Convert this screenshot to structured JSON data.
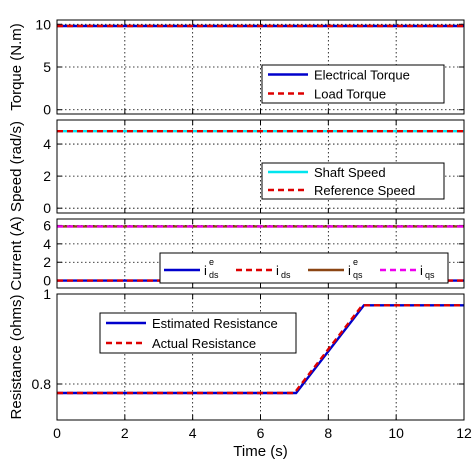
{
  "chart_data": [
    {
      "type": "line",
      "ylabel": "Torque (N.m)",
      "xlim": [
        0,
        12
      ],
      "ylim": [
        -0.5,
        10.5
      ],
      "yticks": [
        "0",
        "5",
        "10"
      ],
      "grid": true,
      "legend": "right",
      "series": [
        {
          "name": "Electrical Torque",
          "color": "#0000cc",
          "dash": false,
          "x": [
            0,
            12
          ],
          "y": [
            9.8,
            9.8
          ]
        },
        {
          "name": "Load Torque",
          "color": "#dd0000",
          "dash": true,
          "x": [
            0,
            12
          ],
          "y": [
            9.8,
            9.8
          ]
        }
      ]
    },
    {
      "type": "line",
      "ylabel": "Speed (rad/s)",
      "xlim": [
        0,
        12
      ],
      "ylim": [
        -0.3,
        5.5
      ],
      "yticks": [
        "0",
        "2",
        "4"
      ],
      "grid": true,
      "legend": "right",
      "series": [
        {
          "name": "Shaft Speed",
          "color": "#00e5ee",
          "dash": false,
          "x": [
            0,
            12
          ],
          "y": [
            4.8,
            4.8
          ]
        },
        {
          "name": "Reference Speed",
          "color": "#dd0000",
          "dash": true,
          "x": [
            0,
            12
          ],
          "y": [
            4.8,
            4.8
          ]
        }
      ]
    },
    {
      "type": "line",
      "ylabel": "Current (A)",
      "xlim": [
        0,
        12
      ],
      "ylim": [
        -0.8,
        6.7
      ],
      "yticks": [
        "0",
        "2",
        "4",
        "6"
      ],
      "grid": true,
      "legend": "center",
      "series": [
        {
          "name": "i^e_ds",
          "label_main": "i",
          "label_sup": "e",
          "label_sub": "ds",
          "color": "#0000cc",
          "dash": false,
          "x": [
            0,
            12
          ],
          "y": [
            0,
            0
          ]
        },
        {
          "name": "i_ds",
          "label_main": "i",
          "label_sup": "",
          "label_sub": "ds",
          "color": "#dd0000",
          "dash": true,
          "x": [
            0,
            12
          ],
          "y": [
            0,
            0
          ]
        },
        {
          "name": "i^e_qs",
          "label_main": "i",
          "label_sup": "e",
          "label_sub": "qs",
          "color": "#8b4513",
          "dash": false,
          "x": [
            0,
            12
          ],
          "y": [
            5.9,
            5.9
          ]
        },
        {
          "name": "i_qs",
          "label_main": "i",
          "label_sup": "",
          "label_sub": "qs",
          "color": "#ee00ee",
          "dash": true,
          "x": [
            0,
            12
          ],
          "y": [
            5.9,
            5.9
          ]
        }
      ]
    },
    {
      "type": "line",
      "ylabel": "Resistance (ohms)",
      "xlabel": "Time (s)",
      "xlim": [
        0,
        12
      ],
      "ylim": [
        0.72,
        1.0
      ],
      "yticks": [
        "0.8",
        "1"
      ],
      "xticks": [
        "0",
        "2",
        "4",
        "6",
        "8",
        "10",
        "12"
      ],
      "grid": true,
      "legend": "top-left",
      "series": [
        {
          "name": "Estimated Resistance",
          "color": "#0000cc",
          "dash": false,
          "x": [
            0,
            7.05,
            9.05,
            12
          ],
          "y": [
            0.78,
            0.78,
            0.975,
            0.975
          ]
        },
        {
          "name": "Actual Resistance",
          "color": "#dd0000",
          "dash": true,
          "x": [
            0,
            7.0,
            9.0,
            12
          ],
          "y": [
            0.78,
            0.78,
            0.975,
            0.975
          ]
        }
      ]
    }
  ]
}
